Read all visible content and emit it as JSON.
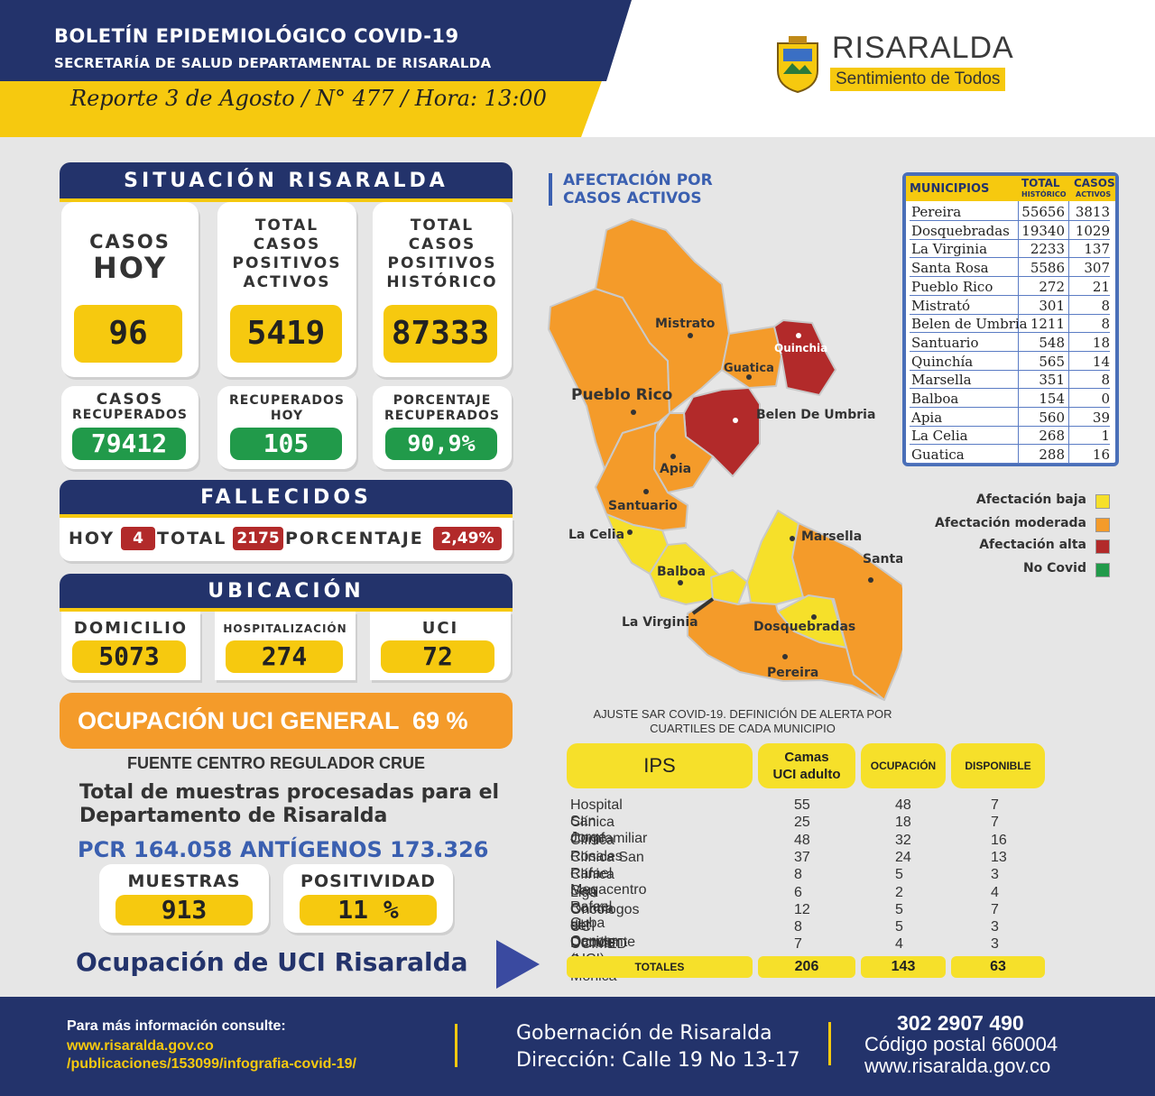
{
  "header": {
    "title": "BOLETÍN EPIDEMIOLÓGICO COVID-19",
    "subtitle": "SECRETARÍA DE SALUD DEPARTAMENTAL DE RISARALDA",
    "report": "Reporte 3 de Agosto / N° 477 / Hora: 13:00",
    "logo_name": "RISARALDA",
    "logo_tagline": "Sentimiento de Todos"
  },
  "situacion": {
    "title": "SITUACIÓN RISARALDA",
    "casos_hoy_l1": "CASOS",
    "casos_hoy_l2": "HOY",
    "casos_hoy": "96",
    "activos_label": [
      "TOTAL",
      "CASOS",
      "POSITIVOS",
      "ACTIVOS"
    ],
    "activos": "5419",
    "historico_label": [
      "TOTAL",
      "CASOS",
      "POSITIVOS",
      "HISTÓRICO"
    ],
    "historico": "87333",
    "recuperados_label": [
      "CASOS",
      "RECUPERADOS"
    ],
    "recuperados": "79412",
    "recuperados_hoy_label": [
      "RECUPERADOS",
      "HOY"
    ],
    "recuperados_hoy": "105",
    "porcentaje_label": [
      "PORCENTAJE",
      "RECUPERADOS"
    ],
    "porcentaje": "90,9%"
  },
  "fallecidos": {
    "title": "FALLECIDOS",
    "hoy_label": "HOY",
    "hoy": "4",
    "total_label": "TOTAL",
    "total": "2175",
    "porcentaje_label": "PORCENTAJE",
    "porcentaje": "2,49%"
  },
  "ubicacion": {
    "title": "UBICACIÓN",
    "domicilio_label": "DOMICILIO",
    "domicilio": "5073",
    "hospitalizacion_label": "HOSPITALIZACIÓN",
    "hospitalizacion": "274",
    "uci_label": "UCI",
    "uci": "72"
  },
  "ocupacion": {
    "label": "OCUPACIÓN UCI GENERAL  69 %",
    "fuente": "FUENTE CENTRO REGULADOR CRUE"
  },
  "muestras": {
    "intro_l1": "Total de muestras procesadas para el",
    "intro_l2": "Departamento de Risaralda",
    "pcr": "PCR 164.058",
    "antigenos": "ANTÍGENOS 173.326",
    "muestras_label": "MUESTRAS",
    "muestras": "913",
    "positividad_label": "POSITIVIDAD",
    "positividad": "11 %"
  },
  "uci_link": "Ocupación de UCI Risaralda",
  "map": {
    "title_l1": "AFECTACIÓN POR",
    "title_l2": "CASOS ACTIVOS",
    "labels": [
      "Mistrato",
      "Quinchia",
      "Guatica",
      "Pueblo Rico",
      "Belen De Umbria",
      "Apia",
      "Santuario",
      "La Celia",
      "Marsella",
      "Santa Rosa",
      "Balboa",
      "La Virginia",
      "Dosquebradas",
      "Pereira"
    ],
    "colors": {
      "baja": "#f6e02a",
      "moderada": "#f49b2a",
      "alta": "#b22a2a",
      "nocovid": "#219a4a"
    }
  },
  "legend": {
    "items": [
      "Afectación baja",
      "Afectación moderada",
      "Afectación alta",
      "No Covid"
    ]
  },
  "municipios": {
    "h_mun": "MUNICIPIOS",
    "h_total": "TOTAL",
    "h_total_sub": "HISTÓRICO",
    "h_casos": "CASOS",
    "h_casos_sub": "ACTIVOS",
    "rows": [
      {
        "name": "Pereira",
        "total": "55656",
        "activos": "3813"
      },
      {
        "name": "Dosquebradas",
        "total": "19340",
        "activos": "1029"
      },
      {
        "name": "La Virginia",
        "total": "2233",
        "activos": "137"
      },
      {
        "name": "Santa Rosa",
        "total": "5586",
        "activos": "307"
      },
      {
        "name": "Pueblo Rico",
        "total": "272",
        "activos": "21"
      },
      {
        "name": "Mistrató",
        "total": "301",
        "activos": "8"
      },
      {
        "name": "Belen de Umbria",
        "total": "1211",
        "activos": "8"
      },
      {
        "name": "Santuario",
        "total": "548",
        "activos": "18"
      },
      {
        "name": "Quinchía",
        "total": "565",
        "activos": "14"
      },
      {
        "name": "Marsella",
        "total": "351",
        "activos": "8"
      },
      {
        "name": "Balboa",
        "total": "154",
        "activos": "0"
      },
      {
        "name": "Apia",
        "total": "560",
        "activos": "39"
      },
      {
        "name": "La Celia",
        "total": "268",
        "activos": "1"
      },
      {
        "name": "Guatica",
        "total": "288",
        "activos": "16"
      }
    ]
  },
  "ajuste": {
    "l1": "AJUSTE SAR COVID-19. DEFINICIÓN DE ALERTA POR",
    "l2": "CUARTILES DE CADA MUNICIPIO"
  },
  "ips": {
    "h_ips": "IPS",
    "h_camas_l1": "Camas",
    "h_camas_l2": "UCI adulto",
    "h_ocupacion": "OCUPACIÓN",
    "h_disponible": "DISPONIBLE",
    "rows": [
      {
        "name": "Hospital San Jorge",
        "camas": "55",
        "ocupacion": "48",
        "disponible": "7"
      },
      {
        "name": "Clínica Comfamiliar",
        "camas": "25",
        "ocupacion": "18",
        "disponible": "7"
      },
      {
        "name": "Clínica Rosales",
        "camas": "48",
        "ocupacion": "32",
        "disponible": "16"
      },
      {
        "name": "Clínica San Rafael Megacentro",
        "camas": "37",
        "ocupacion": "24",
        "disponible": "13"
      },
      {
        "name": "Clínica San Rafael Cuba",
        "camas": "8",
        "ocupacion": "5",
        "disponible": "3"
      },
      {
        "name": "Liga Contra el Cancer",
        "camas": "6",
        "ocupacion": "2",
        "disponible": "4"
      },
      {
        "name": "Oncólogos del Occidente",
        "camas": "12",
        "ocupacion": "5",
        "disponible": "7"
      },
      {
        "name": "UCI Dumian (UCI)",
        "camas": "8",
        "ocupacion": "5",
        "disponible": "3"
      },
      {
        "name": "UCIMED Santa Mónica",
        "camas": "7",
        "ocupacion": "4",
        "disponible": "3"
      }
    ],
    "totales_label": "TOTALES",
    "tot_camas": "206",
    "tot_ocupacion": "143",
    "tot_disponible": "63"
  },
  "footer": {
    "info_label": "Para más información consulte:",
    "url1": "www.risaralda.gov.co",
    "url2": "/publicaciones/153099/infografia-covid-19/",
    "gob": "Gobernación de Risaralda",
    "direccion": "Dirección: Calle 19 No 13-17",
    "telefono": "302 2907 490",
    "postal": "Código postal 660004",
    "web": "www.risaralda.gov.co"
  }
}
